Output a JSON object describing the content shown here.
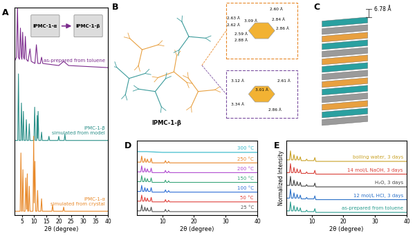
{
  "chart_data": [
    {
      "type": "line",
      "title": "A",
      "x_label": "2θ (degree)",
      "tick_labels": "x",
      "grid": false,
      "xlim": [
        2,
        40
      ],
      "xticks": [
        5,
        10,
        15,
        20,
        25,
        30,
        35,
        40
      ],
      "ylim": [
        0,
        100
      ],
      "yticks": [],
      "annotations": [
        "IPMC-1-α",
        "IPMC-1-β"
      ],
      "series": [
        {
          "name": "as-prepared from toluene",
          "color": "#7b2a8c",
          "x": [
            2,
            2.8,
            3.2,
            3.6,
            4.0,
            4.4,
            4.8,
            5.0,
            5.3,
            5.7,
            6.0,
            6.4,
            6.8,
            7.5,
            8.3,
            8.8,
            10.3,
            10.9,
            11.5,
            12.5,
            13,
            13.5,
            20,
            22,
            24,
            40
          ],
          "values": [
            74,
            76,
            100,
            76,
            75,
            90,
            76,
            75,
            88,
            76,
            75,
            86,
            75,
            74,
            80,
            74,
            73,
            82,
            73,
            73,
            76,
            73,
            72,
            74,
            72,
            71
          ]
        },
        {
          "name": "IPMC-1-β\nsimulated from model",
          "color": "#2a8f88",
          "x": [
            2,
            3.3,
            3.6,
            3.9,
            4.5,
            4.8,
            5.1,
            5.3,
            5.6,
            5.9,
            6.5,
            6.8,
            7.1,
            7.7,
            8.0,
            8.3,
            9.9,
            10.2,
            10.5,
            11.0,
            11.2,
            11.4,
            11.6,
            11.9,
            12.7,
            13,
            13.3,
            15.7,
            16,
            16.3,
            19.7,
            20,
            20.3,
            22.2,
            22.5,
            22.8,
            40
          ],
          "values": [
            36,
            36,
            68,
            36,
            36,
            54,
            36,
            36,
            50,
            36,
            36,
            46,
            36,
            36,
            44,
            36,
            36,
            52,
            36,
            36,
            48,
            37,
            50,
            36,
            36,
            40,
            36,
            36,
            38,
            36,
            36,
            38,
            36,
            36,
            39,
            36,
            36
          ]
        },
        {
          "name": "IPMC-1-α\nsimulated from crystal",
          "color": "#e8892a",
          "x": [
            2,
            4.3,
            4.6,
            4.9,
            5.1,
            5.4,
            5.7,
            6.3,
            6.6,
            6.9,
            7.0,
            7.2,
            7.4,
            7.7,
            8.0,
            8.3,
            9.5,
            9.8,
            10.0,
            10.3,
            10.6,
            11.1,
            11.4,
            11.7,
            12.7,
            13,
            13.3,
            17.2,
            17.5,
            17.8,
            21.7,
            22,
            22.3,
            40
          ],
          "values": [
            2,
            2,
            30,
            2,
            2,
            22,
            2,
            2,
            18,
            3,
            3,
            20,
            2,
            2,
            14,
            2,
            2,
            38,
            6,
            26,
            2,
            2,
            12,
            2,
            2,
            8,
            2,
            2,
            5,
            2,
            2,
            4,
            2,
            2
          ]
        }
      ]
    },
    {
      "type": "line",
      "title": "D",
      "x_label": "2θ (degree)",
      "tick_labels": "x",
      "grid": false,
      "xlim": [
        2,
        40
      ],
      "xticks": [
        10,
        20,
        30,
        40
      ],
      "ylim": [
        0,
        100
      ],
      "yticks": [],
      "series": [
        {
          "name": "300 °C",
          "color": "#2bb5c8",
          "x": [
            2,
            5,
            10,
            40
          ],
          "values": [
            85,
            85,
            84,
            84
          ]
        },
        {
          "name": "250 °C",
          "color": "#e8862a",
          "x": [
            2,
            3.2,
            3.5,
            3.8,
            4.2,
            4.5,
            4.8,
            5.0,
            5.3,
            5.6,
            6.2,
            6.5,
            6.8,
            10.7,
            11.0,
            11.3,
            11.7,
            12.0,
            12.3,
            40
          ],
          "values": [
            71,
            71,
            79,
            71,
            71,
            76,
            71,
            71,
            75,
            71,
            71,
            76,
            70,
            70,
            73,
            70,
            70,
            72,
            70,
            70
          ]
        },
        {
          "name": "200 °C",
          "color": "#b04ad0",
          "x": [
            2,
            3.2,
            3.5,
            3.8,
            4.2,
            4.5,
            4.8,
            5.0,
            5.3,
            5.6,
            6.2,
            6.5,
            6.8,
            10.7,
            11.0,
            11.3,
            11.7,
            12.0,
            12.3,
            40
          ],
          "values": [
            58,
            58,
            66,
            58,
            58,
            63,
            58,
            58,
            62,
            58,
            58,
            63,
            57,
            57,
            60,
            57,
            57,
            59,
            57,
            57
          ]
        },
        {
          "name": "150 °C",
          "color": "#3aa57a",
          "x": [
            2,
            3.2,
            3.5,
            3.8,
            4.2,
            4.5,
            4.8,
            5.0,
            5.3,
            5.6,
            6.2,
            6.5,
            6.8,
            10.7,
            11.0,
            11.3,
            11.7,
            12.0,
            12.3,
            40
          ],
          "values": [
            45,
            45,
            53,
            45,
            45,
            50,
            45,
            45,
            49,
            45,
            45,
            50,
            44,
            44,
            47,
            44,
            44,
            46,
            44,
            44
          ]
        },
        {
          "name": "100 °C",
          "color": "#2f6fd6",
          "x": [
            2,
            3.2,
            3.5,
            3.8,
            4.2,
            4.5,
            4.8,
            5.0,
            5.3,
            5.6,
            6.2,
            6.5,
            6.8,
            10.7,
            11.0,
            11.3,
            11.7,
            12.0,
            12.3,
            40
          ],
          "values": [
            32,
            32,
            40,
            32,
            32,
            37,
            32,
            32,
            36,
            32,
            32,
            37,
            31,
            31,
            34,
            31,
            31,
            33,
            31,
            31
          ]
        },
        {
          "name": "50 °C",
          "color": "#e0403a",
          "x": [
            2,
            3.2,
            3.5,
            3.8,
            4.2,
            4.5,
            4.8,
            5.0,
            5.3,
            5.6,
            6.2,
            6.5,
            6.8,
            10.7,
            11.0,
            11.3,
            11.7,
            12.0,
            12.3,
            40
          ],
          "values": [
            19,
            19,
            27,
            19,
            19,
            24,
            19,
            19,
            23,
            19,
            19,
            24,
            18,
            18,
            21,
            18,
            18,
            20,
            18,
            18
          ]
        },
        {
          "name": "25 °C",
          "color": "#555555",
          "x": [
            2,
            3.2,
            3.5,
            3.8,
            4.2,
            4.5,
            4.8,
            5.0,
            5.3,
            5.6,
            6.2,
            6.5,
            6.8,
            10.7,
            11.0,
            11.3,
            11.7,
            12.0,
            12.3,
            40
          ],
          "values": [
            6,
            6,
            14,
            6,
            6,
            11,
            6,
            6,
            10,
            6,
            6,
            11,
            5,
            5,
            8,
            5,
            5,
            7,
            5,
            5
          ]
        }
      ]
    },
    {
      "type": "line",
      "title": "E",
      "x_label": "2θ (degree)",
      "y_label": "Normalized Intensity",
      "tick_labels": "x",
      "grid": false,
      "xlim": [
        2,
        40
      ],
      "xticks": [
        10,
        20,
        30,
        40
      ],
      "ylim": [
        0,
        100
      ],
      "yticks": [],
      "series": [
        {
          "name": "boiling water, 3 days",
          "color": "#c9a227",
          "x": [
            2,
            3.0,
            3.3,
            3.6,
            4.1,
            4.4,
            4.7,
            5.1,
            5.4,
            5.7,
            6.1,
            6.4,
            6.7,
            8.1,
            8.4,
            8.7,
            10.7,
            11.0,
            11.3,
            40
          ],
          "values": [
            74,
            74,
            86,
            74,
            74,
            81,
            74,
            74,
            79,
            74,
            74,
            78,
            73,
            73,
            75,
            73,
            73,
            77,
            72,
            72
          ]
        },
        {
          "name": "14 mol/L NaOH, 3 days",
          "color": "#d9413a",
          "x": [
            2,
            3.0,
            3.3,
            3.6,
            4.1,
            4.4,
            4.7,
            5.1,
            5.4,
            5.7,
            6.1,
            6.4,
            6.7,
            8.1,
            8.4,
            8.7,
            10.7,
            11.0,
            11.3,
            40
          ],
          "values": [
            57,
            57,
            69,
            57,
            57,
            64,
            57,
            57,
            62,
            57,
            57,
            61,
            56,
            56,
            58,
            56,
            56,
            60,
            55,
            55
          ]
        },
        {
          "name": "H₂O, 3 days",
          "color": "#444444",
          "x": [
            2,
            3.0,
            3.3,
            3.6,
            4.1,
            4.4,
            4.7,
            5.1,
            5.4,
            5.7,
            6.1,
            6.4,
            6.7,
            8.1,
            8.4,
            8.7,
            10.7,
            11.0,
            11.3,
            40
          ],
          "values": [
            40,
            40,
            52,
            40,
            40,
            47,
            40,
            40,
            45,
            40,
            40,
            44,
            39,
            39,
            41,
            39,
            39,
            43,
            38,
            38
          ]
        },
        {
          "name": "12 mol/L HCl, 3 days",
          "color": "#2a70c8",
          "x": [
            2,
            3.0,
            3.3,
            3.6,
            4.1,
            4.4,
            4.7,
            5.1,
            5.4,
            5.7,
            6.1,
            6.4,
            6.7,
            8.1,
            8.4,
            8.7,
            10.7,
            11.0,
            11.3,
            40
          ],
          "values": [
            23,
            23,
            35,
            23,
            23,
            30,
            23,
            23,
            28,
            23,
            23,
            27,
            22,
            22,
            24,
            22,
            22,
            26,
            21,
            21
          ]
        },
        {
          "name": "as-prepared from toluene",
          "color": "#2a9d8f",
          "x": [
            2,
            3.0,
            3.3,
            3.6,
            4.1,
            4.4,
            4.7,
            5.1,
            5.4,
            5.7,
            6.1,
            6.4,
            6.7,
            8.1,
            8.4,
            8.7,
            10.7,
            11.0,
            11.3,
            40
          ],
          "values": [
            6,
            6,
            18,
            6,
            6,
            13,
            6,
            6,
            11,
            6,
            6,
            10,
            5,
            5,
            7,
            5,
            5,
            9,
            4,
            4
          ]
        }
      ]
    }
  ],
  "diagram": {
    "panels": [
      {
        "panel": "B",
        "label": "IPMC-1-β",
        "upper_inset_labels": [
          "2.60 Å",
          "2.63 Å",
          "2.62 Å",
          "3.09 Å",
          "2.84 Å",
          "2.86 Å",
          "2.59 Å",
          "2.88 Å"
        ],
        "lower_inset_labels": [
          "3.12 Å",
          "2.61 Å",
          "3.01 Å",
          "3.34 Å",
          "2.86 Å"
        ]
      },
      {
        "panel": "C",
        "label": "6.78 Å"
      }
    ]
  }
}
